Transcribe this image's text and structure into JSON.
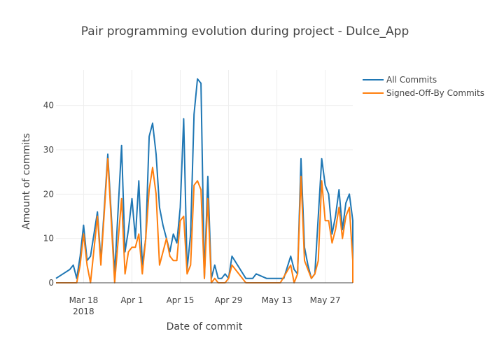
{
  "chart_data": {
    "type": "line",
    "title": "Pair programming evolution during project - Dulce_App",
    "xlabel": "Date of commit",
    "ylabel": "Amount of commits",
    "xlim": [
      "2018-03-10",
      "2018-06-04"
    ],
    "ylim": [
      0,
      48
    ],
    "x_ticks": [
      {
        "date": "2018-03-18",
        "label": "Mar 18",
        "sublabel": "2018"
      },
      {
        "date": "2018-04-01",
        "label": "Apr 1"
      },
      {
        "date": "2018-04-15",
        "label": "Apr 15"
      },
      {
        "date": "2018-04-29",
        "label": "Apr 29"
      },
      {
        "date": "2018-05-13",
        "label": "May 13"
      },
      {
        "date": "2018-05-27",
        "label": "May 27"
      }
    ],
    "y_ticks": [
      0,
      10,
      20,
      30,
      40
    ],
    "grid": true,
    "legend_position": "top-right",
    "series": [
      {
        "name": "All Commits",
        "color": "#1f77b4",
        "points": [
          [
            "2018-03-10",
            1
          ],
          [
            "2018-03-12",
            2
          ],
          [
            "2018-03-14",
            3
          ],
          [
            "2018-03-15",
            4
          ],
          [
            "2018-03-16",
            1
          ],
          [
            "2018-03-17",
            6
          ],
          [
            "2018-03-18",
            13
          ],
          [
            "2018-03-19",
            5
          ],
          [
            "2018-03-20",
            6
          ],
          [
            "2018-03-22",
            16
          ],
          [
            "2018-03-23",
            5
          ],
          [
            "2018-03-25",
            29
          ],
          [
            "2018-03-27",
            2
          ],
          [
            "2018-03-29",
            31
          ],
          [
            "2018-03-30",
            7
          ],
          [
            "2018-03-31",
            12
          ],
          [
            "2018-04-01",
            19
          ],
          [
            "2018-04-02",
            10
          ],
          [
            "2018-04-03",
            23
          ],
          [
            "2018-04-04",
            4
          ],
          [
            "2018-04-05",
            10
          ],
          [
            "2018-04-06",
            33
          ],
          [
            "2018-04-07",
            36
          ],
          [
            "2018-04-08",
            29
          ],
          [
            "2018-04-09",
            17
          ],
          [
            "2018-04-10",
            13
          ],
          [
            "2018-04-11",
            10
          ],
          [
            "2018-04-12",
            7
          ],
          [
            "2018-04-13",
            11
          ],
          [
            "2018-04-14",
            9
          ],
          [
            "2018-04-15",
            17
          ],
          [
            "2018-04-16",
            37
          ],
          [
            "2018-04-17",
            3
          ],
          [
            "2018-04-18",
            11
          ],
          [
            "2018-04-19",
            38
          ],
          [
            "2018-04-20",
            46
          ],
          [
            "2018-04-21",
            45
          ],
          [
            "2018-04-22",
            1
          ],
          [
            "2018-04-23",
            24
          ],
          [
            "2018-04-24",
            1
          ],
          [
            "2018-04-25",
            4
          ],
          [
            "2018-04-26",
            1
          ],
          [
            "2018-04-27",
            1
          ],
          [
            "2018-04-28",
            2
          ],
          [
            "2018-04-29",
            1
          ],
          [
            "2018-04-30",
            6
          ],
          [
            "2018-05-04",
            1
          ],
          [
            "2018-05-06",
            1
          ],
          [
            "2018-05-07",
            2
          ],
          [
            "2018-05-10",
            1
          ],
          [
            "2018-05-15",
            1
          ],
          [
            "2018-05-17",
            6
          ],
          [
            "2018-05-18",
            3
          ],
          [
            "2018-05-19",
            2
          ],
          [
            "2018-05-20",
            28
          ],
          [
            "2018-05-21",
            8
          ],
          [
            "2018-05-22",
            4
          ],
          [
            "2018-05-23",
            1
          ],
          [
            "2018-05-24",
            2
          ],
          [
            "2018-05-25",
            15
          ],
          [
            "2018-05-26",
            28
          ],
          [
            "2018-05-27",
            22
          ],
          [
            "2018-05-28",
            20
          ],
          [
            "2018-05-29",
            11
          ],
          [
            "2018-05-30",
            15
          ],
          [
            "2018-05-31",
            21
          ],
          [
            "2018-06-01",
            12
          ],
          [
            "2018-06-02",
            18
          ],
          [
            "2018-06-03",
            20
          ],
          [
            "2018-06-04",
            14
          ],
          [
            "2018-06-04",
            1
          ]
        ]
      },
      {
        "name": "Signed-Off-By Commits",
        "color": "#ff7f0e",
        "points": [
          [
            "2018-03-10",
            0
          ],
          [
            "2018-03-12",
            0
          ],
          [
            "2018-03-14",
            0
          ],
          [
            "2018-03-15",
            0
          ],
          [
            "2018-03-16",
            0
          ],
          [
            "2018-03-17",
            4
          ],
          [
            "2018-03-18",
            11
          ],
          [
            "2018-03-19",
            4
          ],
          [
            "2018-03-20",
            0
          ],
          [
            "2018-03-22",
            15
          ],
          [
            "2018-03-23",
            4
          ],
          [
            "2018-03-25",
            28
          ],
          [
            "2018-03-27",
            0
          ],
          [
            "2018-03-29",
            19
          ],
          [
            "2018-03-30",
            2
          ],
          [
            "2018-03-31",
            7
          ],
          [
            "2018-04-01",
            8
          ],
          [
            "2018-04-02",
            8
          ],
          [
            "2018-04-03",
            11
          ],
          [
            "2018-04-04",
            2
          ],
          [
            "2018-04-05",
            10
          ],
          [
            "2018-04-06",
            21
          ],
          [
            "2018-04-07",
            26
          ],
          [
            "2018-04-08",
            20
          ],
          [
            "2018-04-09",
            4
          ],
          [
            "2018-04-11",
            10
          ],
          [
            "2018-04-12",
            6
          ],
          [
            "2018-04-13",
            5
          ],
          [
            "2018-04-14",
            5
          ],
          [
            "2018-04-15",
            14
          ],
          [
            "2018-04-16",
            15
          ],
          [
            "2018-04-17",
            2
          ],
          [
            "2018-04-18",
            4
          ],
          [
            "2018-04-19",
            22
          ],
          [
            "2018-04-20",
            23
          ],
          [
            "2018-04-21",
            21
          ],
          [
            "2018-04-22",
            1
          ],
          [
            "2018-04-23",
            19
          ],
          [
            "2018-04-24",
            0
          ],
          [
            "2018-04-25",
            1
          ],
          [
            "2018-04-26",
            0
          ],
          [
            "2018-04-27",
            0
          ],
          [
            "2018-04-28",
            0
          ],
          [
            "2018-04-29",
            1
          ],
          [
            "2018-04-30",
            4
          ],
          [
            "2018-05-04",
            0
          ],
          [
            "2018-05-06",
            0
          ],
          [
            "2018-05-10",
            0
          ],
          [
            "2018-05-14",
            0
          ],
          [
            "2018-05-17",
            4
          ],
          [
            "2018-05-18",
            0
          ],
          [
            "2018-05-19",
            2
          ],
          [
            "2018-05-20",
            24
          ],
          [
            "2018-05-21",
            5
          ],
          [
            "2018-05-22",
            3
          ],
          [
            "2018-05-23",
            1
          ],
          [
            "2018-05-24",
            2
          ],
          [
            "2018-05-25",
            5
          ],
          [
            "2018-05-26",
            23
          ],
          [
            "2018-05-27",
            14
          ],
          [
            "2018-05-28",
            14
          ],
          [
            "2018-05-29",
            9
          ],
          [
            "2018-05-30",
            12
          ],
          [
            "2018-05-31",
            17
          ],
          [
            "2018-06-01",
            10
          ],
          [
            "2018-06-02",
            15
          ],
          [
            "2018-06-03",
            17
          ],
          [
            "2018-06-04",
            5
          ],
          [
            "2018-06-04",
            0
          ]
        ]
      }
    ]
  }
}
